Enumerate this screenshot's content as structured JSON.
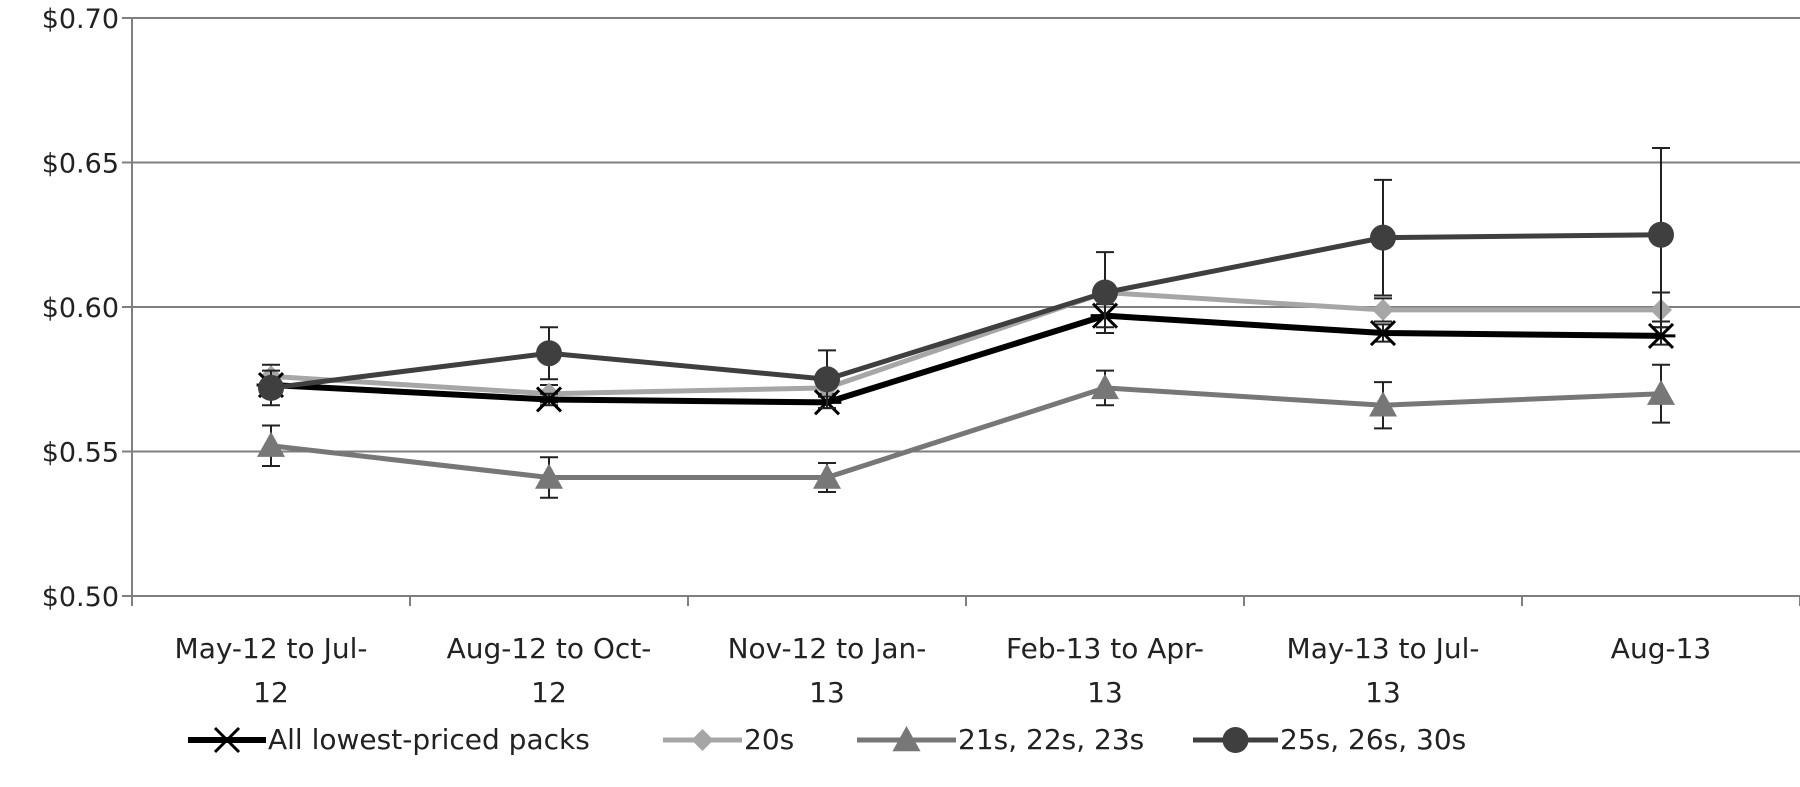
{
  "chart_data": {
    "type": "line",
    "title": "",
    "xlabel": "",
    "ylabel": "",
    "categories": [
      [
        "May-12 to Jul-",
        "12"
      ],
      [
        "Aug-12 to Oct-",
        "12"
      ],
      [
        "Nov-12 to Jan-",
        "13"
      ],
      [
        "Feb-13 to Apr-",
        "13"
      ],
      [
        "May-13 to Jul-",
        "13"
      ],
      [
        "Aug-13"
      ]
    ],
    "ylim": [
      0.5,
      0.7
    ],
    "yticks": [
      0.5,
      0.55,
      0.6,
      0.65,
      0.7
    ],
    "ytick_labels": [
      "$0.50",
      "$0.55",
      "$0.60",
      "$0.65",
      "$0.70"
    ],
    "grid": true,
    "legend_position": "bottom",
    "series": [
      {
        "name": "All lowest-priced packs",
        "marker": "star",
        "color": "#000000",
        "values": [
          0.573,
          0.568,
          0.567,
          0.597,
          0.591,
          0.59
        ],
        "error": [
          0.002,
          0.002,
          0.002,
          0.004,
          0.003,
          0.003
        ]
      },
      {
        "name": "20s",
        "marker": "diamond",
        "color": "#a6a6a6",
        "values": [
          0.576,
          0.57,
          0.572,
          0.605,
          0.599,
          0.599
        ],
        "error": [
          0.004,
          0.003,
          0.002,
          0.003,
          0.004,
          0.006
        ]
      },
      {
        "name": "21s, 22s, 23s",
        "marker": "triangle",
        "color": "#777777",
        "values": [
          0.552,
          0.541,
          0.541,
          0.572,
          0.566,
          0.57
        ],
        "error": [
          0.007,
          0.007,
          0.005,
          0.006,
          0.008,
          0.01
        ]
      },
      {
        "name": "25s, 26s, 30s",
        "marker": "circle",
        "color": "#3f3f3f",
        "values": [
          0.572,
          0.584,
          0.575,
          0.605,
          0.624,
          0.625
        ],
        "error": [
          0.006,
          0.009,
          0.01,
          0.014,
          0.02,
          0.03
        ]
      }
    ]
  }
}
